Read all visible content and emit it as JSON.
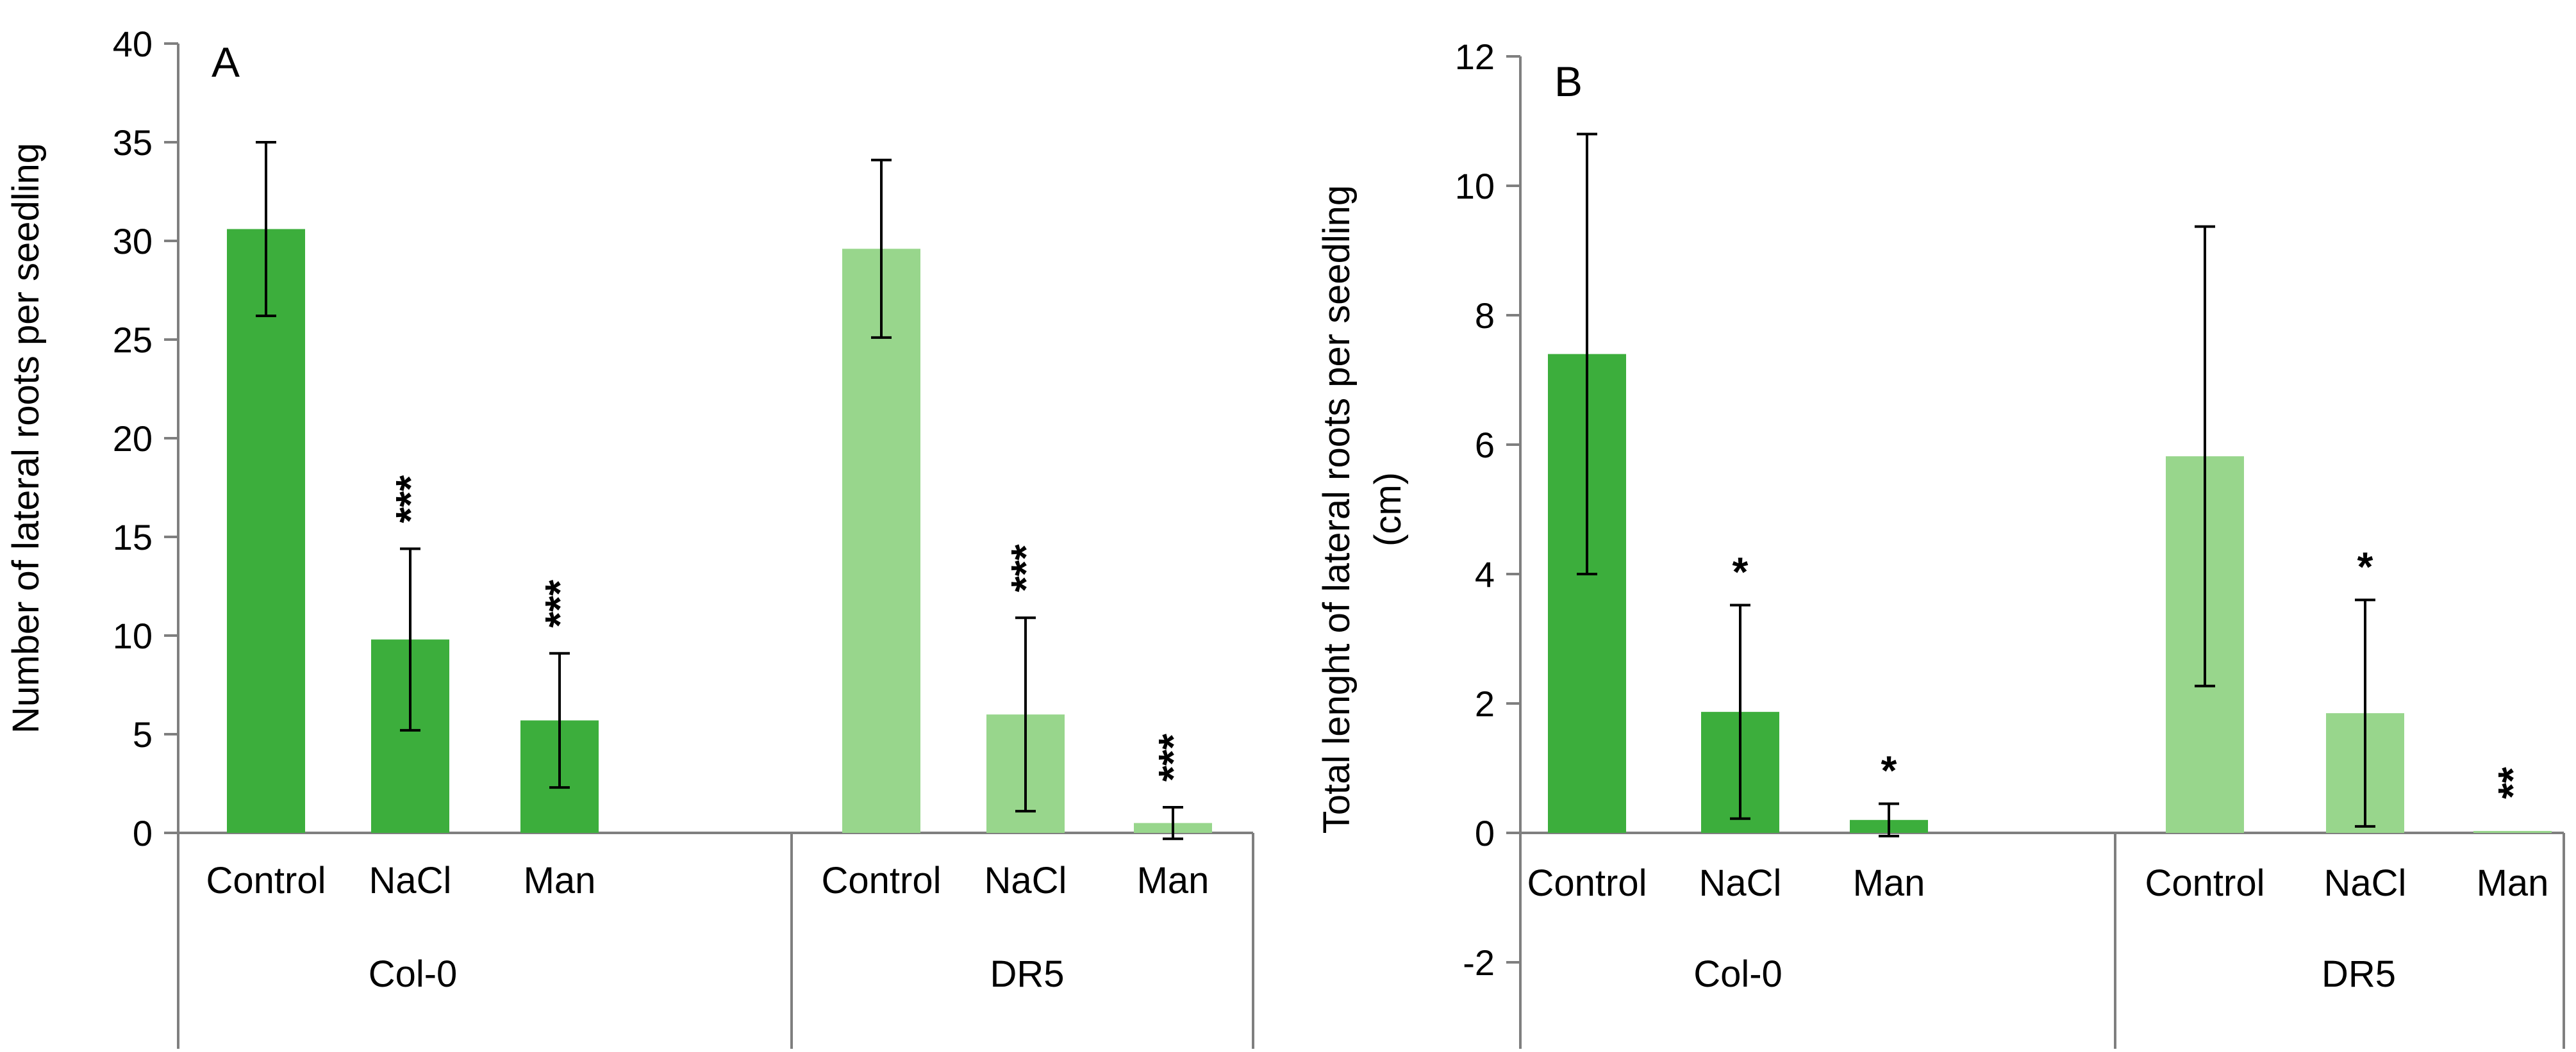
{
  "chart_data": [
    {
      "type": "bar",
      "panel_label": "A",
      "ylabel": "Number of lateral roots per seedling",
      "ylim": [
        0,
        40
      ],
      "ytick_step": 5,
      "yticks": [
        "0",
        "5",
        "10",
        "15",
        "20",
        "25",
        "30",
        "35",
        "40"
      ],
      "groups": [
        {
          "name": "Col-0",
          "color": "#3cae3c",
          "bars": [
            {
              "label": "Control",
              "value": 30.6,
              "error": 4.4,
              "sig": ""
            },
            {
              "label": "NaCl",
              "value": 9.8,
              "error": 4.6,
              "sig": "***"
            },
            {
              "label": "Man",
              "value": 5.7,
              "error": 3.4,
              "sig": "***"
            }
          ]
        },
        {
          "name": "DR5",
          "color": "#98d68c",
          "bars": [
            {
              "label": "Control",
              "value": 29.6,
              "error": 4.5,
              "sig": ""
            },
            {
              "label": "NaCl",
              "value": 6.0,
              "error": 4.9,
              "sig": "***"
            },
            {
              "label": "Man",
              "value": 0.5,
              "error": 0.8,
              "sig": "***"
            }
          ]
        }
      ]
    },
    {
      "type": "bar",
      "panel_label": "B",
      "ylabel_lines": [
        "Total lenght of lateral roots per seedling",
        "(cm)"
      ],
      "ylim": [
        -2,
        12
      ],
      "ytick_step": 2,
      "yticks": [
        "-2",
        "0",
        "2",
        "4",
        "6",
        "8",
        "10",
        "12"
      ],
      "groups": [
        {
          "name": "Col-0",
          "color": "#3cae3c",
          "bars": [
            {
              "label": "Control",
              "value": 7.4,
              "error": 3.4,
              "sig": ""
            },
            {
              "label": "NaCl",
              "value": 1.87,
              "error": 1.65,
              "sig": "*"
            },
            {
              "label": "Man",
              "value": 0.2,
              "error": 0.25,
              "sig": "*"
            }
          ]
        },
        {
          "name": "DR5",
          "color": "#98d68c",
          "bars": [
            {
              "label": "Control",
              "value": 5.82,
              "error": 3.55,
              "sig": ""
            },
            {
              "label": "NaCl",
              "value": 1.85,
              "error": 1.75,
              "sig": "*"
            },
            {
              "label": "Man",
              "value": 0.03,
              "error": 0.0,
              "sig": "**"
            }
          ]
        }
      ]
    }
  ]
}
